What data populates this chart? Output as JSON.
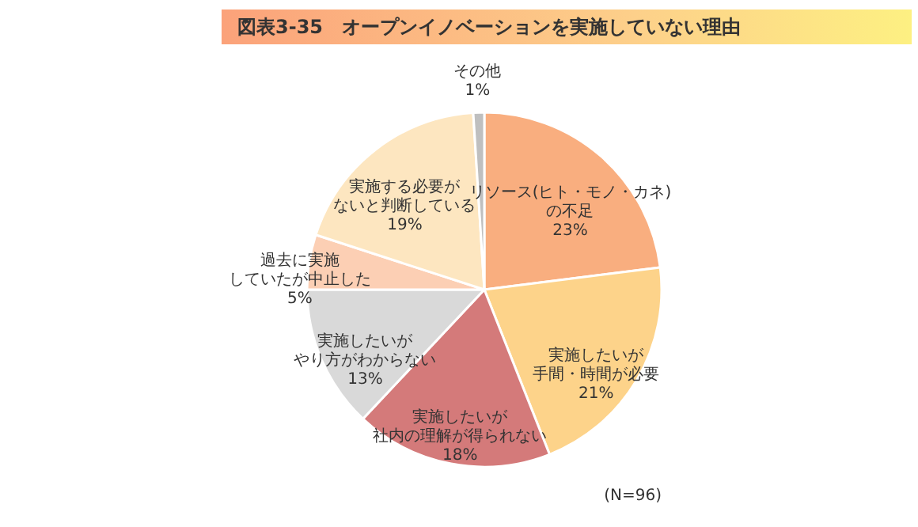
{
  "chart_data": {
    "type": "pie",
    "title": "図表3-35　オープンイノベーションを実施していない理由",
    "categories": [
      "リソース(ヒト・モノ・カネ)の不足",
      "実施したいが手間・時間が必要",
      "実施したいが社内の理解が得られない",
      "実施したいがやり方がわからない",
      "過去に実施していたが中止した",
      "実施する必要がないと判断している",
      "その他"
    ],
    "values": [
      23,
      21,
      18,
      13,
      5,
      19,
      1
    ],
    "value_labels": [
      "23%",
      "21%",
      "18%",
      "13%",
      "5%",
      "19%",
      "1%"
    ],
    "colors": [
      "#f9ae7f",
      "#fdd38a",
      "#d47a7a",
      "#d9d9d9",
      "#fccfb4",
      "#fde6c0",
      "#bfbfbf"
    ],
    "annotations": [
      "(N=96)"
    ]
  }
}
